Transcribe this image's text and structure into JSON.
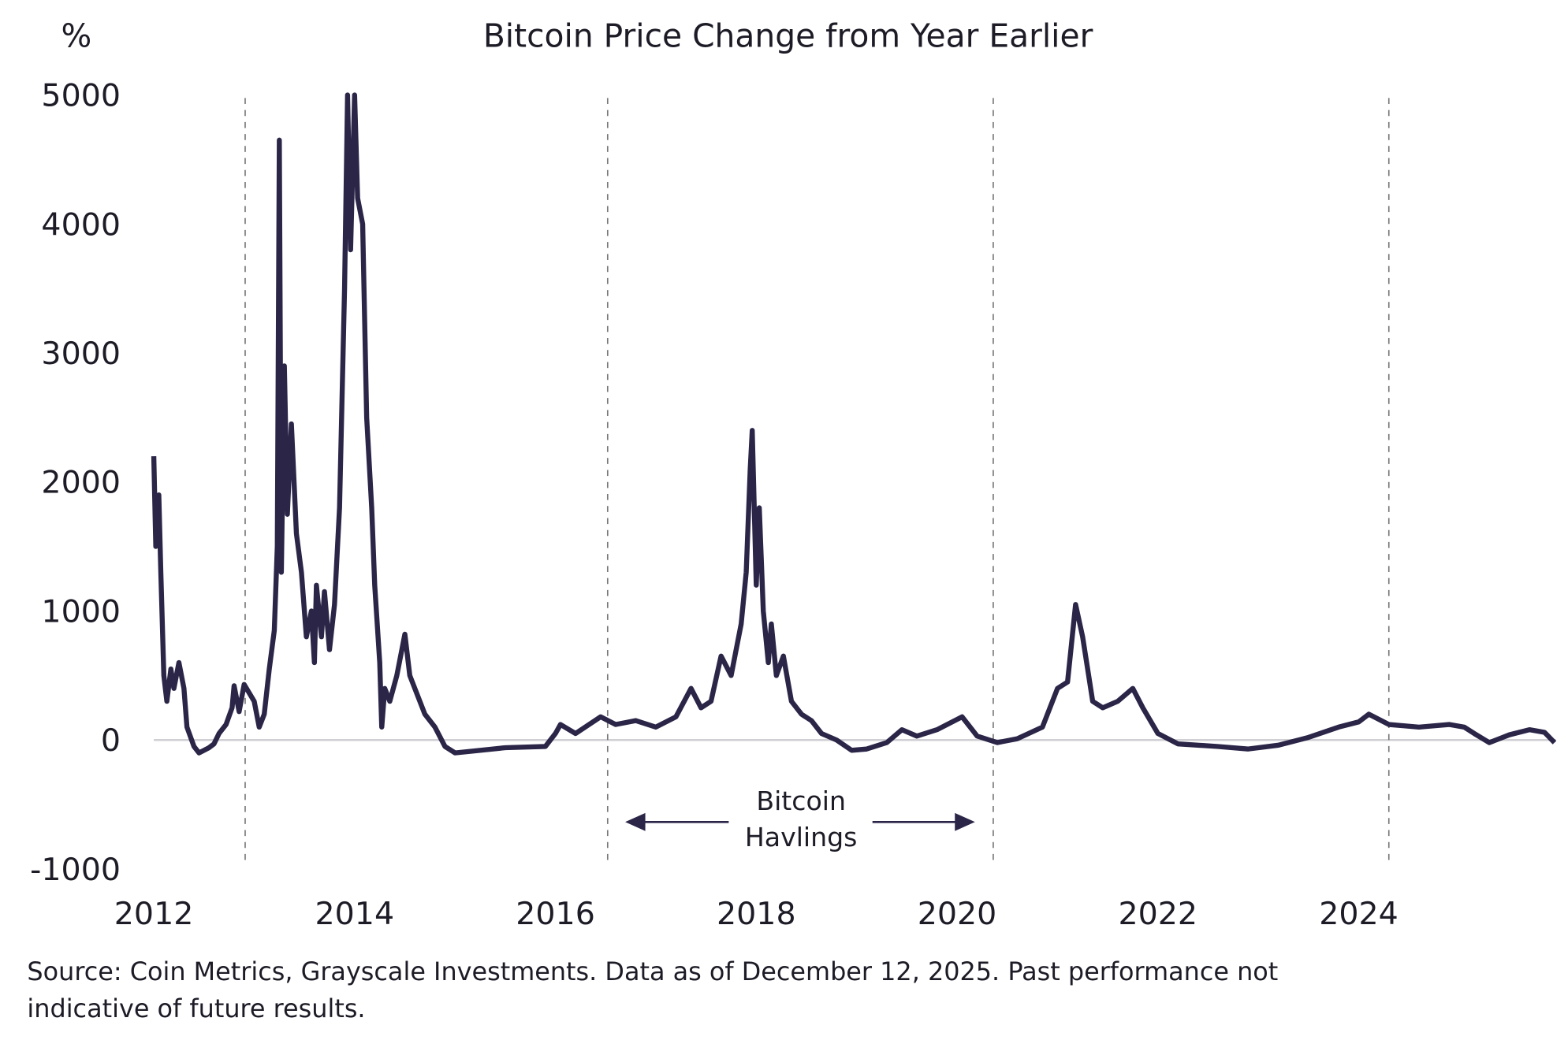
{
  "chart_data": {
    "type": "line",
    "title": "Bitcoin Price Change from Year Earlier",
    "ylabel": "%",
    "xlabel": "",
    "ylim": [
      -1000,
      5000
    ],
    "xlim": [
      2012,
      2026
    ],
    "yticks": [
      "5000",
      "4000",
      "3000",
      "2000",
      "1000",
      "0",
      "-1000"
    ],
    "ytick_values": [
      5000,
      4000,
      3000,
      2000,
      1000,
      0,
      -1000
    ],
    "xticks": [
      "2012",
      "2014",
      "2016",
      "2018",
      "2020",
      "2022",
      "2024"
    ],
    "xtick_values": [
      2012,
      2014,
      2016,
      2018,
      2020,
      2022,
      2024
    ],
    "grid": false,
    "zero_line": true,
    "line_color": "#2b2547",
    "annotation": {
      "line1": "Bitcoin",
      "line2": "Havlings"
    },
    "halving_dates": [
      2012.91,
      2016.52,
      2020.36,
      2024.3
    ],
    "series": [
      {
        "points": [
          [
            2012.0,
            2200
          ],
          [
            2012.02,
            1500
          ],
          [
            2012.05,
            1900
          ],
          [
            2012.07,
            1300
          ],
          [
            2012.1,
            500
          ],
          [
            2012.13,
            300
          ],
          [
            2012.17,
            550
          ],
          [
            2012.2,
            400
          ],
          [
            2012.25,
            600
          ],
          [
            2012.3,
            400
          ],
          [
            2012.33,
            100
          ],
          [
            2012.4,
            -50
          ],
          [
            2012.45,
            -100
          ],
          [
            2012.55,
            -60
          ],
          [
            2012.6,
            -30
          ],
          [
            2012.65,
            50
          ],
          [
            2012.72,
            120
          ],
          [
            2012.78,
            250
          ],
          [
            2012.8,
            420
          ],
          [
            2012.85,
            220
          ],
          [
            2012.9,
            430
          ],
          [
            2013.0,
            300
          ],
          [
            2013.05,
            100
          ],
          [
            2013.1,
            200
          ],
          [
            2013.15,
            550
          ],
          [
            2013.2,
            850
          ],
          [
            2013.23,
            1500
          ],
          [
            2013.25,
            4650
          ],
          [
            2013.27,
            1300
          ],
          [
            2013.3,
            2900
          ],
          [
            2013.33,
            1750
          ],
          [
            2013.37,
            2450
          ],
          [
            2013.42,
            1600
          ],
          [
            2013.47,
            1300
          ],
          [
            2013.52,
            800
          ],
          [
            2013.57,
            1000
          ],
          [
            2013.6,
            600
          ],
          [
            2013.62,
            1200
          ],
          [
            2013.67,
            800
          ],
          [
            2013.7,
            1150
          ],
          [
            2013.75,
            700
          ],
          [
            2013.8,
            1050
          ],
          [
            2013.85,
            1800
          ],
          [
            2013.9,
            3500
          ],
          [
            2013.93,
            5000
          ],
          [
            2013.96,
            3800
          ],
          [
            2014.0,
            5000
          ],
          [
            2014.03,
            4200
          ],
          [
            2014.08,
            4000
          ],
          [
            2014.12,
            2500
          ],
          [
            2014.17,
            1800
          ],
          [
            2014.2,
            1200
          ],
          [
            2014.25,
            600
          ],
          [
            2014.27,
            100
          ],
          [
            2014.3,
            400
          ],
          [
            2014.35,
            300
          ],
          [
            2014.42,
            500
          ],
          [
            2014.5,
            820
          ],
          [
            2014.55,
            500
          ],
          [
            2014.6,
            400
          ],
          [
            2014.7,
            200
          ],
          [
            2014.8,
            100
          ],
          [
            2014.9,
            -50
          ],
          [
            2015.0,
            -100
          ],
          [
            2015.5,
            -60
          ],
          [
            2015.9,
            -50
          ],
          [
            2016.0,
            50
          ],
          [
            2016.05,
            120
          ],
          [
            2016.2,
            50
          ],
          [
            2016.45,
            180
          ],
          [
            2016.6,
            120
          ],
          [
            2016.8,
            150
          ],
          [
            2017.0,
            100
          ],
          [
            2017.2,
            180
          ],
          [
            2017.35,
            400
          ],
          [
            2017.45,
            250
          ],
          [
            2017.55,
            300
          ],
          [
            2017.65,
            650
          ],
          [
            2017.75,
            500
          ],
          [
            2017.85,
            900
          ],
          [
            2017.9,
            1300
          ],
          [
            2017.94,
            2100
          ],
          [
            2017.96,
            2400
          ],
          [
            2018.0,
            1200
          ],
          [
            2018.03,
            1800
          ],
          [
            2018.07,
            1000
          ],
          [
            2018.12,
            600
          ],
          [
            2018.15,
            900
          ],
          [
            2018.2,
            500
          ],
          [
            2018.27,
            650
          ],
          [
            2018.35,
            300
          ],
          [
            2018.45,
            200
          ],
          [
            2018.55,
            150
          ],
          [
            2018.65,
            50
          ],
          [
            2018.8,
            0
          ],
          [
            2018.95,
            -80
          ],
          [
            2019.1,
            -70
          ],
          [
            2019.3,
            -20
          ],
          [
            2019.45,
            80
          ],
          [
            2019.6,
            30
          ],
          [
            2019.8,
            80
          ],
          [
            2020.05,
            180
          ],
          [
            2020.2,
            30
          ],
          [
            2020.4,
            -20
          ],
          [
            2020.6,
            10
          ],
          [
            2020.85,
            100
          ],
          [
            2021.0,
            400
          ],
          [
            2021.1,
            450
          ],
          [
            2021.18,
            1050
          ],
          [
            2021.25,
            800
          ],
          [
            2021.35,
            300
          ],
          [
            2021.45,
            250
          ],
          [
            2021.6,
            300
          ],
          [
            2021.75,
            400
          ],
          [
            2021.85,
            250
          ],
          [
            2022.0,
            50
          ],
          [
            2022.2,
            -30
          ],
          [
            2022.6,
            -50
          ],
          [
            2022.9,
            -70
          ],
          [
            2023.2,
            -40
          ],
          [
            2023.5,
            20
          ],
          [
            2023.8,
            100
          ],
          [
            2024.0,
            140
          ],
          [
            2024.1,
            200
          ],
          [
            2024.3,
            120
          ],
          [
            2024.6,
            100
          ],
          [
            2024.9,
            120
          ],
          [
            2025.05,
            100
          ],
          [
            2025.15,
            50
          ],
          [
            2025.3,
            -20
          ],
          [
            2025.5,
            40
          ],
          [
            2025.7,
            80
          ],
          [
            2025.85,
            60
          ],
          [
            2025.95,
            -20
          ]
        ]
      }
    ]
  },
  "footnote": {
    "line1": "Source: Coin Metrics, Grayscale Investments. Data as of December 12, 2025. Past performance not",
    "line2": "indicative of future results."
  }
}
